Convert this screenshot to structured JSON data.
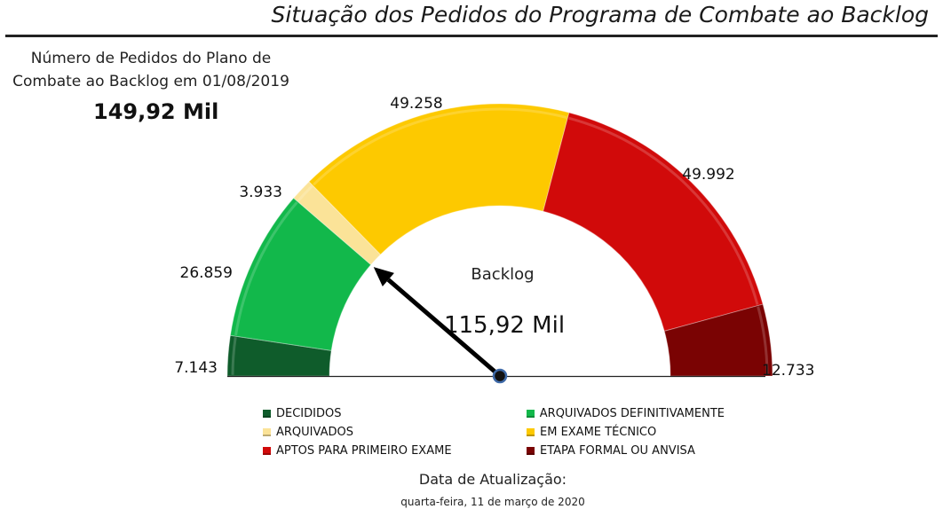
{
  "page": {
    "title": "Situação dos Pedidos do Programa de Combate ao Backlog",
    "kpi_caption": "Número de Pedidos do Plano de Combate ao Backlog em 01/08/2019",
    "kpi_value": "149,92 Mil",
    "update_label": "Data de Atualização:",
    "update_date": "quarta-feira, 11 de março de 2020"
  },
  "chart_data": {
    "type": "gauge",
    "title": "",
    "center_label": "Backlog",
    "center_value_label": "115,92 Mil",
    "needle_value": 34002,
    "total": 149918,
    "segments": [
      {
        "name": "DECIDIDOS",
        "value": 7143,
        "label": "7.143",
        "color": "#0f5c2b"
      },
      {
        "name": "ARQUIVADOS DEFINITIVAMENTE",
        "value": 26859,
        "label": "26.859",
        "color": "#12b84b"
      },
      {
        "name": "ARQUIVADOS",
        "value": 3933,
        "label": "3.933",
        "color": "#fbe398"
      },
      {
        "name": "EM EXAME TÉCNICO",
        "value": 49258,
        "label": "49.258",
        "color": "#fdc900"
      },
      {
        "name": "APTOS PARA PRIMEIRO EXAME",
        "value": 49992,
        "label": "49.992",
        "color": "#d10a0a"
      },
      {
        "name": "ETAPA FORMAL OU ANVISA",
        "value": 12733,
        "label": "12.733",
        "color": "#7a0303"
      }
    ]
  },
  "legend": {
    "items": [
      {
        "label": "DECIDIDOS",
        "color": "#0f5c2b"
      },
      {
        "label": "ARQUIVADOS DEFINITIVAMENTE",
        "color": "#12b84b"
      },
      {
        "label": "ARQUIVADOS",
        "color": "#fbe398"
      },
      {
        "label": "EM EXAME TÉCNICO",
        "color": "#fdc900"
      },
      {
        "label": "APTOS PARA PRIMEIRO EXAME",
        "color": "#d10a0a"
      },
      {
        "label": "ETAPA FORMAL OU ANVISA",
        "color": "#7a0303"
      }
    ]
  }
}
